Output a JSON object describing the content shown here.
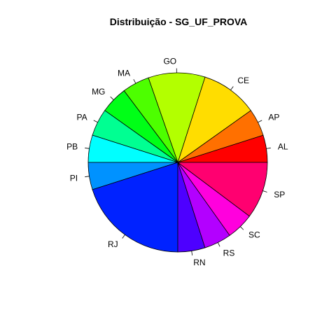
{
  "chart_data": {
    "type": "pie",
    "title": "Distribuição - SG_UF_PROVA",
    "direction": "counterclockwise from 3 o'clock",
    "slices": [
      {
        "label": "AL",
        "value": 4.8,
        "color": "#FF0000"
      },
      {
        "label": "AP",
        "value": 4.8,
        "color": "#FF7000"
      },
      {
        "label": "CE",
        "value": 10.0,
        "color": "#FFDD00"
      },
      {
        "label": "GO",
        "value": 10.0,
        "color": "#B3FF00"
      },
      {
        "label": "MA",
        "value": 4.8,
        "color": "#4DFF00"
      },
      {
        "label": "MG",
        "value": 4.8,
        "color": "#00FF17"
      },
      {
        "label": "PA",
        "value": 4.8,
        "color": "#00FF92"
      },
      {
        "label": "PB",
        "value": 4.8,
        "color": "#00FFFF"
      },
      {
        "label": "PI",
        "value": 4.8,
        "color": "#0092FF"
      },
      {
        "label": "RJ",
        "value": 19.6,
        "color": "#0022FF"
      },
      {
        "label": "RN",
        "value": 4.8,
        "color": "#4D00FF"
      },
      {
        "label": "RS",
        "value": 4.8,
        "color": "#B300FF"
      },
      {
        "label": "SC",
        "value": 4.8,
        "color": "#FF00DD"
      },
      {
        "label": "SP",
        "value": 10.0,
        "color": "#FF0070"
      }
    ]
  }
}
